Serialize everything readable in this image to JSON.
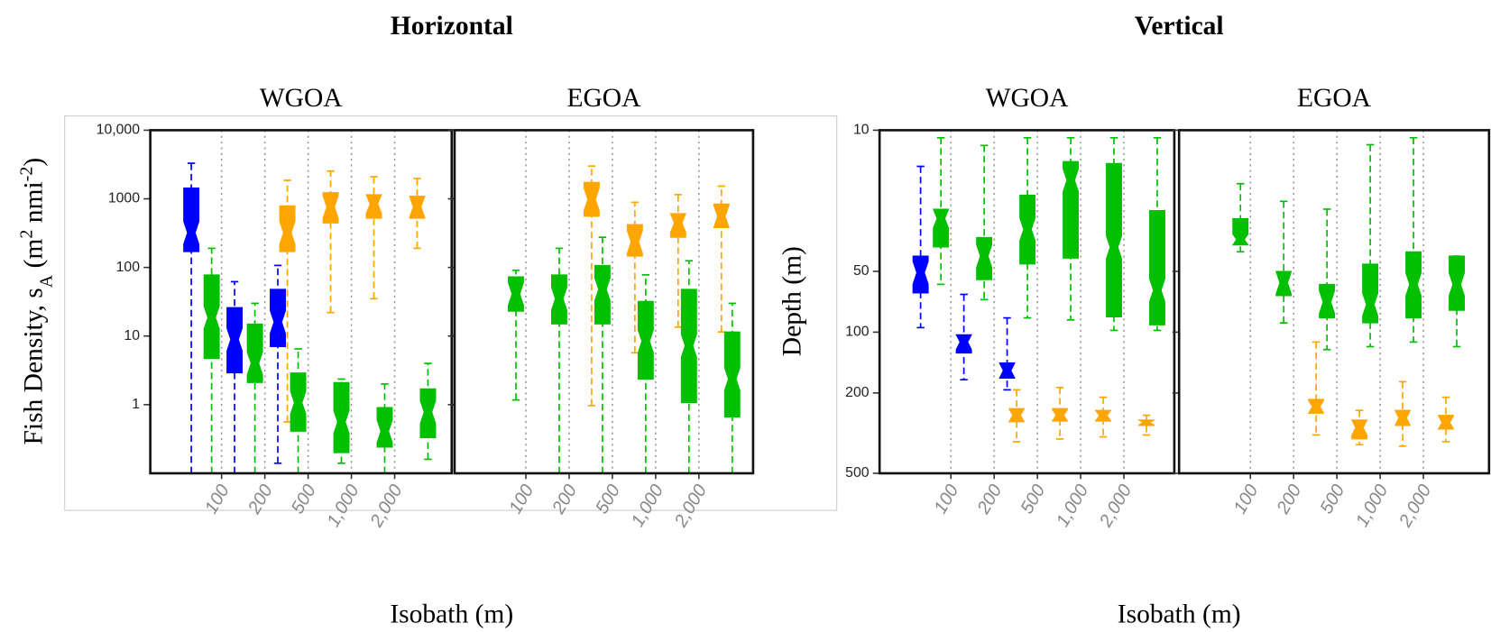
{
  "groups": [
    {
      "title": "Horizontal",
      "x_label": "Isobath (m)",
      "y_label": [
        {
          "text": "Fish Density, s"
        },
        {
          "text": "A",
          "shift": "sub"
        },
        {
          "text": " (m"
        },
        {
          "text": "2",
          "shift": "sup"
        },
        {
          "text": " nmi"
        },
        {
          "text": "-2",
          "shift": "sup"
        },
        {
          "text": ")"
        }
      ]
    },
    {
      "title": "Vertical",
      "x_label": "Isobath (m)",
      "y_label": [
        {
          "text": "Depth (m)"
        }
      ]
    }
  ],
  "chart_data": [
    {
      "type": "box",
      "title": "WGOA",
      "log_y": true,
      "invert_y": false,
      "ylim": [
        0.1,
        10000
      ],
      "yticks": [
        {
          "value": 10000,
          "label": "10,000"
        },
        1000,
        100,
        10,
        1
      ],
      "categories": [
        null,
        null,
        null,
        null,
        null,
        null
      ],
      "xticks": [
        100,
        200,
        500,
        {
          "value": 1000,
          "label": "1,000"
        },
        {
          "value": 2000,
          "label": "2,000"
        }
      ],
      "series": [
        {
          "color": "#0000ff",
          "values": [
            {
              "low": 0.1,
              "q1": 170,
              "median": 320,
              "q3": 1440,
              "high": 3300
            },
            {
              "low": 0.1,
              "q1": 2.9,
              "median": 8.9,
              "q3": 26,
              "high": 62
            },
            {
              "low": 0.14,
              "q1": 7,
              "median": 16,
              "q3": 48,
              "high": 107
            },
            null,
            null,
            null
          ]
        },
        {
          "color": "#ffa500",
          "values": [
            null,
            null,
            {
              "low": 0.56,
              "q1": 170,
              "median": 320,
              "q3": 790,
              "high": 1860
            },
            {
              "low": 22,
              "q1": 445,
              "median": 760,
              "q3": 1230,
              "high": 2540
            },
            {
              "low": 35,
              "q1": 520,
              "median": 840,
              "q3": 1150,
              "high": 2100
            },
            {
              "low": 190,
              "q1": 520,
              "median": 760,
              "q3": 1090,
              "high": 1980
            }
          ]
        },
        {
          "color": "#00c000",
          "values": [
            {
              "low": 0.1,
              "q1": 4.7,
              "median": 18.6,
              "q3": 78,
              "high": 190
            },
            {
              "low": 0.1,
              "q1": 2.1,
              "median": 4,
              "q3": 15,
              "high": 30
            },
            {
              "low": 0.1,
              "q1": 0.41,
              "median": 1.07,
              "q3": 2.9,
              "high": 6.5
            },
            {
              "low": 0.14,
              "q1": 0.2,
              "median": 0.56,
              "q3": 2.1,
              "high": 2.36
            },
            {
              "low": 0.1,
              "q1": 0.24,
              "median": 0.41,
              "q3": 0.91,
              "high": 2
            },
            {
              "low": 0.16,
              "q1": 0.33,
              "median": 0.78,
              "q3": 1.7,
              "high": 4
            }
          ]
        }
      ]
    },
    {
      "type": "box",
      "title": "EGOA",
      "log_y": true,
      "invert_y": false,
      "ytick_labels": false,
      "ylim": [
        0.1,
        10000
      ],
      "yticks": [
        {
          "value": 10000,
          "label": "10,000"
        },
        1000,
        100,
        10,
        1
      ],
      "categories": [
        null,
        null,
        null,
        null,
        null,
        null
      ],
      "xticks": [
        100,
        200,
        500,
        {
          "value": 1000,
          "label": "1,000"
        },
        {
          "value": 2000,
          "label": "2,000"
        }
      ],
      "series": [
        {
          "color": "#ffa500",
          "values": [
            null,
            null,
            {
              "low": 0.97,
              "q1": 555,
              "median": 980,
              "q3": 1740,
              "high": 3000
            },
            {
              "low": 5.7,
              "q1": 146,
              "median": 235,
              "q3": 420,
              "high": 890
            },
            {
              "low": 13.5,
              "q1": 275,
              "median": 445,
              "q3": 610,
              "high": 1150
            },
            {
              "low": 11.5,
              "q1": 380,
              "median": 555,
              "q3": 840,
              "high": 1530
            }
          ]
        },
        {
          "color": "#00c000",
          "values": [
            {
              "low": 1.17,
              "q1": 23,
              "median": 41,
              "q3": 73,
              "high": 91
            },
            {
              "low": 0.1,
              "q1": 15,
              "median": 35,
              "q3": 78,
              "high": 190
            },
            {
              "low": 0.1,
              "q1": 15,
              "median": 48,
              "q3": 107,
              "high": 275
            },
            {
              "low": 0.1,
              "q1": 2.36,
              "median": 8.4,
              "q3": 32,
              "high": 78
            },
            {
              "low": 0.1,
              "q1": 1.07,
              "median": 7.2,
              "q3": 48,
              "high": 125
            },
            {
              "low": 0.1,
              "q1": 0.66,
              "median": 2.36,
              "q3": 11.5,
              "high": 30
            }
          ]
        }
      ]
    },
    {
      "type": "box",
      "title": "WGOA",
      "log_y": true,
      "invert_y": true,
      "ylim": [
        10,
        500
      ],
      "yticks": [
        10,
        50,
        100,
        200,
        500
      ],
      "categories": [
        null,
        null,
        null,
        null,
        null,
        null
      ],
      "xticks": [
        100,
        200,
        500,
        {
          "value": 1000,
          "label": "1,000"
        },
        {
          "value": 2000,
          "label": "2,000"
        }
      ],
      "series": [
        {
          "color": "#0000ff",
          "values": [
            {
              "low": 15.1,
              "q1": 42,
              "median": 50.8,
              "q3": 64,
              "high": 95
            },
            {
              "low": 65,
              "q1": 103,
              "median": 112,
              "q3": 127,
              "high": 172
            },
            {
              "low": 85,
              "q1": 142,
              "median": 155,
              "q3": 169,
              "high": 193
            },
            null,
            null,
            null
          ]
        },
        {
          "color": "#ffa500",
          "values": [
            null,
            null,
            {
              "low": 193,
              "q1": 239,
              "median": 258,
              "q3": 278,
              "high": 349
            },
            {
              "low": 188,
              "q1": 239,
              "median": 258,
              "q3": 276,
              "high": 338
            },
            {
              "low": 210,
              "q1": 244,
              "median": 259,
              "q3": 276,
              "high": 330
            },
            {
              "low": 258,
              "q1": 272,
              "median": 280,
              "q3": 290,
              "high": 323
            }
          ]
        },
        {
          "color": "#00c000",
          "values": [
            {
              "low": 10.9,
              "q1": 24.6,
              "median": 27.4,
              "q3": 37.9,
              "high": 58
            },
            {
              "low": 11.9,
              "q1": 34,
              "median": 42,
              "q3": 55,
              "high": 69
            },
            {
              "low": 10.9,
              "q1": 21,
              "median": 31,
              "q3": 46,
              "high": 85
            },
            {
              "low": 10.9,
              "q1": 14.3,
              "median": 17.7,
              "q3": 43,
              "high": 87
            },
            {
              "low": 10.9,
              "q1": 14.6,
              "median": 38,
              "q3": 84,
              "high": 98
            },
            {
              "low": 10.9,
              "q1": 25,
              "median": 62,
              "q3": 92,
              "high": 98
            }
          ]
        }
      ]
    },
    {
      "type": "box",
      "title": "EGOA",
      "log_y": true,
      "invert_y": true,
      "ytick_labels": false,
      "ylim": [
        10,
        500
      ],
      "yticks": [
        10,
        50,
        100,
        200,
        500
      ],
      "categories": [
        null,
        null,
        null,
        null,
        null,
        null
      ],
      "xticks": [
        100,
        200,
        500,
        {
          "value": 1000,
          "label": "1,000"
        },
        {
          "value": 2000,
          "label": "2,000"
        }
      ],
      "series": [
        {
          "color": "#ffa500",
          "values": [
            null,
            null,
            {
              "low": 112,
              "q1": 215,
              "median": 234,
              "q3": 252,
              "high": 323
            },
            {
              "low": 244,
              "q1": 272,
              "median": 297,
              "q3": 338,
              "high": 361
            },
            {
              "low": 176,
              "q1": 244,
              "median": 266,
              "q3": 290,
              "high": 367
            },
            {
              "low": 210,
              "q1": 258,
              "median": 280,
              "q3": 302,
              "high": 349
            }
          ]
        },
        {
          "color": "#00c000",
          "values": [
            {
              "low": 18.4,
              "q1": 27.4,
              "median": 34.8,
              "q3": 37,
              "high": 40
            },
            {
              "low": 22.5,
              "q1": 50,
              "median": 57,
              "q3": 66,
              "high": 90
            },
            {
              "low": 24.6,
              "q1": 58,
              "median": 71,
              "q3": 85,
              "high": 122
            },
            {
              "low": 11.8,
              "q1": 46,
              "median": 73,
              "q3": 90,
              "high": 118
            },
            {
              "low": 10.9,
              "q1": 40,
              "median": 58,
              "q3": 85,
              "high": 112
            },
            {
              "low": 42,
              "q1": 42,
              "median": 58,
              "q3": 78,
              "high": 118
            }
          ]
        }
      ]
    }
  ]
}
